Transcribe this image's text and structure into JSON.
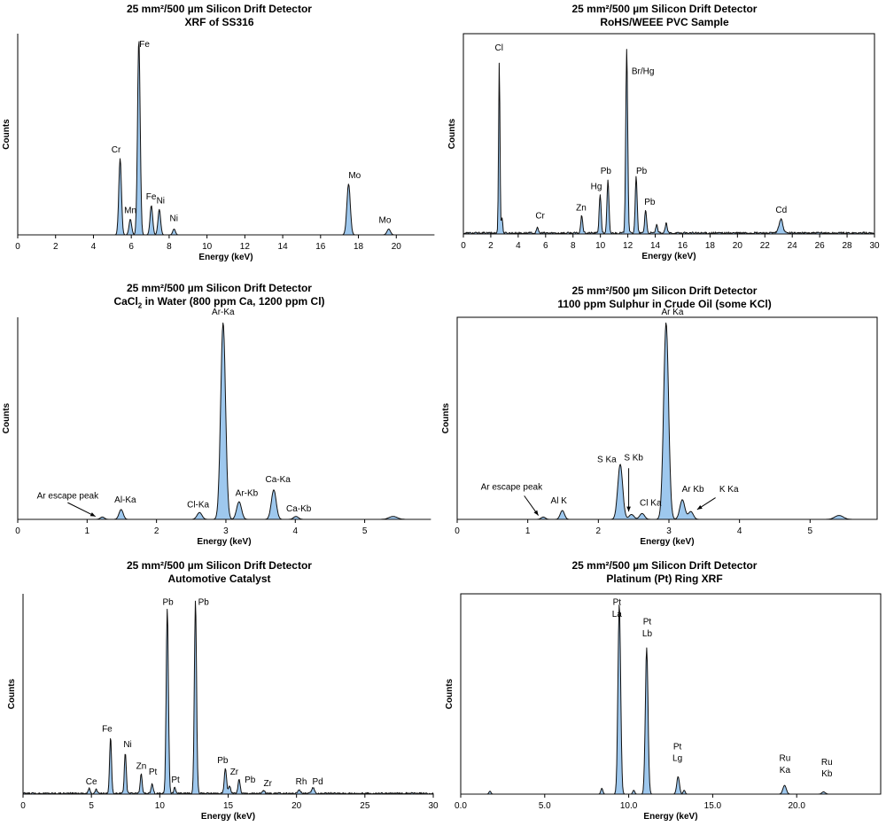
{
  "chart_data": [
    {
      "type": "area",
      "title": "25 mm²/500 µm Silicon Drift Detector",
      "subtitle": "XRF of SS316",
      "xlabel": "Energy (keV)",
      "ylabel": "Counts",
      "xlim": [
        0,
        22
      ],
      "xticks": [
        "0",
        "2",
        "4",
        "6",
        "8",
        "10",
        "12",
        "14",
        "16",
        "18",
        "20"
      ],
      "tick_step": 2,
      "frame": "left-bottom",
      "peaks": [
        {
          "x": 5.41,
          "h": 0.39,
          "w": 0.07
        },
        {
          "x": 5.95,
          "h": 0.08,
          "w": 0.07
        },
        {
          "x": 6.4,
          "h": 1.0,
          "w": 0.07
        },
        {
          "x": 7.06,
          "h": 0.15,
          "w": 0.07
        },
        {
          "x": 7.48,
          "h": 0.13,
          "w": 0.07
        },
        {
          "x": 8.26,
          "h": 0.03,
          "w": 0.07
        },
        {
          "x": 17.48,
          "h": 0.26,
          "w": 0.09
        },
        {
          "x": 19.6,
          "h": 0.03,
          "w": 0.09
        }
      ],
      "annotations": [
        {
          "text": "Cr",
          "x": 5.2,
          "h": 0.42
        },
        {
          "text": "Mn",
          "x": 5.95,
          "h": 0.11
        },
        {
          "text": "Fe",
          "x": 6.7,
          "h": 0.96
        },
        {
          "text": "Fe",
          "x": 7.05,
          "h": 0.18
        },
        {
          "text": "Ni",
          "x": 7.55,
          "h": 0.16
        },
        {
          "text": "Ni",
          "x": 8.25,
          "h": 0.07
        },
        {
          "text": "Mo",
          "x": 17.8,
          "h": 0.29
        },
        {
          "text": "Mo",
          "x": 19.4,
          "h": 0.06
        }
      ]
    },
    {
      "type": "area",
      "title": "25 mm²/500 µm Silicon Drift Detector",
      "subtitle": "RoHS/WEEE PVC Sample",
      "xlabel": "Energy (keV)",
      "ylabel": "Counts",
      "xlim": [
        0,
        30
      ],
      "xticks": [
        "0",
        "2",
        "4",
        "6",
        "8",
        "10",
        "12",
        "14",
        "16",
        "18",
        "20",
        "22",
        "24",
        "26",
        "28",
        "30"
      ],
      "tick_step": 2,
      "frame": "box",
      "noise": 0.01,
      "peaks": [
        {
          "x": 2.62,
          "h": 0.88,
          "w": 0.05
        },
        {
          "x": 2.82,
          "h": 0.08,
          "w": 0.05
        },
        {
          "x": 5.41,
          "h": 0.03,
          "w": 0.06
        },
        {
          "x": 8.64,
          "h": 0.09,
          "w": 0.07
        },
        {
          "x": 9.98,
          "h": 0.2,
          "w": 0.07
        },
        {
          "x": 10.55,
          "h": 0.27,
          "w": 0.07
        },
        {
          "x": 11.92,
          "h": 0.95,
          "w": 0.07
        },
        {
          "x": 12.61,
          "h": 0.29,
          "w": 0.07
        },
        {
          "x": 13.3,
          "h": 0.12,
          "w": 0.07
        },
        {
          "x": 14.1,
          "h": 0.04,
          "w": 0.07
        },
        {
          "x": 14.8,
          "h": 0.05,
          "w": 0.07
        },
        {
          "x": 23.17,
          "h": 0.07,
          "w": 0.14
        }
      ],
      "annotations": [
        {
          "text": "Cl",
          "x": 2.6,
          "h": 0.94
        },
        {
          "text": "Cr",
          "x": 5.6,
          "h": 0.08
        },
        {
          "text": "Zn",
          "x": 8.6,
          "h": 0.12
        },
        {
          "text": "Hg",
          "x": 9.7,
          "h": 0.23
        },
        {
          "text": "Pb",
          "x": 10.4,
          "h": 0.31
        },
        {
          "text": "Br/Hg",
          "x": 13.1,
          "h": 0.82
        },
        {
          "text": "Pb",
          "x": 13.0,
          "h": 0.31
        },
        {
          "text": "Pb",
          "x": 13.6,
          "h": 0.15
        },
        {
          "text": "Cd",
          "x": 23.2,
          "h": 0.11
        }
      ]
    },
    {
      "type": "area",
      "title": "25 mm²/500 µm Silicon Drift Detector",
      "subtitle_html": "CaCl<sub>2</sub> in Water (800 ppm Ca, 1200 ppm Cl)",
      "xlabel": "Energy (keV)",
      "ylabel": "Counts",
      "xlim": [
        0,
        5.95
      ],
      "xticks": [
        "0",
        "1",
        "2",
        "3",
        "4",
        "5"
      ],
      "tick_step": 1,
      "frame": "left-bottom",
      "peaks": [
        {
          "x": 1.22,
          "h": 0.012,
          "w": 0.03
        },
        {
          "x": 1.49,
          "h": 0.05,
          "w": 0.03
        },
        {
          "x": 2.62,
          "h": 0.035,
          "w": 0.035
        },
        {
          "x": 2.96,
          "h": 1.0,
          "w": 0.035
        },
        {
          "x": 3.19,
          "h": 0.09,
          "w": 0.035
        },
        {
          "x": 3.69,
          "h": 0.15,
          "w": 0.035
        },
        {
          "x": 4.01,
          "h": 0.015,
          "w": 0.035
        },
        {
          "x": 5.41,
          "h": 0.015,
          "w": 0.06
        }
      ],
      "annotations": [
        {
          "text": "Ar escape peak",
          "x": 0.72,
          "h": 0.105
        },
        {
          "text": "Al-Ka",
          "x": 1.55,
          "h": 0.085
        },
        {
          "text": "Cl-Ka",
          "x": 2.6,
          "h": 0.06
        },
        {
          "text": "Ar-Ka",
          "x": 2.96,
          "h": 1.04
        },
        {
          "text": "Ar-Kb",
          "x": 3.3,
          "h": 0.12
        },
        {
          "text": "Ca-Ka",
          "x": 3.75,
          "h": 0.19
        },
        {
          "text": "Ca-Kb",
          "x": 4.05,
          "h": 0.04
        }
      ],
      "arrows": [
        {
          "x1": 0.72,
          "h1": 0.085,
          "x2": 1.12,
          "h2": 0.015
        }
      ]
    },
    {
      "type": "area",
      "title": "25 mm²/500 µm Silicon Drift Detector",
      "subtitle": "1100 ppm Sulphur in Crude Oil (some KCl)",
      "xlabel": "Energy (keV)",
      "ylabel": "Counts",
      "xlim": [
        0,
        5.95
      ],
      "xticks": [
        "0",
        "1",
        "2",
        "3",
        "4",
        "5"
      ],
      "tick_step": 1,
      "frame": "box",
      "peaks": [
        {
          "x": 1.22,
          "h": 0.012,
          "w": 0.03
        },
        {
          "x": 1.49,
          "h": 0.045,
          "w": 0.03
        },
        {
          "x": 2.31,
          "h": 0.28,
          "w": 0.035
        },
        {
          "x": 2.47,
          "h": 0.025,
          "w": 0.035
        },
        {
          "x": 2.62,
          "h": 0.03,
          "w": 0.035
        },
        {
          "x": 2.96,
          "h": 1.0,
          "w": 0.035
        },
        {
          "x": 3.19,
          "h": 0.1,
          "w": 0.035
        },
        {
          "x": 3.31,
          "h": 0.04,
          "w": 0.035
        },
        {
          "x": 5.41,
          "h": 0.02,
          "w": 0.06
        }
      ],
      "annotations": [
        {
          "text": "Ar escape peak",
          "x": 0.77,
          "h": 0.15
        },
        {
          "text": "Al K",
          "x": 1.44,
          "h": 0.08
        },
        {
          "text": "S Ka",
          "x": 2.12,
          "h": 0.29
        },
        {
          "text": "S Kb",
          "x": 2.5,
          "h": 0.3
        },
        {
          "text": "Cl Ka",
          "x": 2.74,
          "h": 0.07
        },
        {
          "text": "Ar Ka",
          "x": 3.05,
          "h": 1.04
        },
        {
          "text": "Ar Kb",
          "x": 3.34,
          "h": 0.14
        },
        {
          "text": "K Ka",
          "x": 3.85,
          "h": 0.14
        }
      ],
      "arrows": [
        {
          "x1": 0.95,
          "h1": 0.12,
          "x2": 1.15,
          "h2": 0.02
        },
        {
          "x1": 2.43,
          "h1": 0.26,
          "x2": 2.43,
          "h2": 0.04
        },
        {
          "x1": 3.66,
          "h1": 0.11,
          "x2": 3.4,
          "h2": 0.05
        }
      ]
    },
    {
      "type": "area",
      "title": "25 mm²/500 µm Silicon Drift Detector",
      "subtitle": "Automotive Catalyst",
      "xlabel": "Energy (keV)",
      "ylabel": "Counts",
      "xlim": [
        0,
        30
      ],
      "xticks": [
        "0",
        "5",
        "10",
        "15",
        "20",
        "25",
        "30"
      ],
      "tick_step": 5,
      "frame": "left-bottom",
      "noise": 0.008,
      "peaks": [
        {
          "x": 4.84,
          "h": 0.025,
          "w": 0.07
        },
        {
          "x": 5.35,
          "h": 0.02,
          "w": 0.07
        },
        {
          "x": 6.4,
          "h": 0.29,
          "w": 0.07
        },
        {
          "x": 7.48,
          "h": 0.21,
          "w": 0.07
        },
        {
          "x": 8.64,
          "h": 0.1,
          "w": 0.07
        },
        {
          "x": 9.44,
          "h": 0.05,
          "w": 0.07
        },
        {
          "x": 10.55,
          "h": 0.95,
          "w": 0.08
        },
        {
          "x": 11.1,
          "h": 0.03,
          "w": 0.07
        },
        {
          "x": 12.61,
          "h": 0.99,
          "w": 0.08
        },
        {
          "x": 14.8,
          "h": 0.13,
          "w": 0.08
        },
        {
          "x": 15.1,
          "h": 0.04,
          "w": 0.08
        },
        {
          "x": 15.8,
          "h": 0.07,
          "w": 0.08
        },
        {
          "x": 17.6,
          "h": 0.015,
          "w": 0.08
        },
        {
          "x": 20.2,
          "h": 0.02,
          "w": 0.09
        },
        {
          "x": 21.2,
          "h": 0.03,
          "w": 0.09
        }
      ],
      "annotations": [
        {
          "text": "Ce",
          "x": 5.0,
          "h": 0.05
        },
        {
          "text": "Fe",
          "x": 6.15,
          "h": 0.32
        },
        {
          "text": "Ni",
          "x": 7.65,
          "h": 0.24
        },
        {
          "text": "Zn",
          "x": 8.65,
          "h": 0.13
        },
        {
          "text": "Pt",
          "x": 9.5,
          "h": 0.1
        },
        {
          "text": "Pb",
          "x": 10.6,
          "h": 0.97
        },
        {
          "text": "Pb",
          "x": 13.2,
          "h": 0.97
        },
        {
          "text": "Pt",
          "x": 11.15,
          "h": 0.06
        },
        {
          "text": "Pb",
          "x": 14.6,
          "h": 0.16
        },
        {
          "text": "Zr",
          "x": 15.45,
          "h": 0.1
        },
        {
          "text": "Pb",
          "x": 16.6,
          "h": 0.06
        },
        {
          "text": "Zr",
          "x": 17.9,
          "h": 0.04
        },
        {
          "text": "Rh",
          "x": 20.35,
          "h": 0.05
        },
        {
          "text": "Pd",
          "x": 21.55,
          "h": 0.05
        }
      ]
    },
    {
      "type": "area",
      "title": "25 mm²/500 µm Silicon Drift Detector",
      "subtitle": "Platinum (Pt) Ring XRF",
      "xlabel": "Energy (keV)",
      "ylabel": "Counts",
      "xlim": [
        0,
        25
      ],
      "xticks": [
        "0.0",
        "5.0",
        "10.0",
        "15.0",
        "20.0"
      ],
      "tick_step": 5,
      "frame": "box",
      "peaks": [
        {
          "x": 1.74,
          "h": 0.015,
          "w": 0.06
        },
        {
          "x": 8.4,
          "h": 0.03,
          "w": 0.06
        },
        {
          "x": 9.44,
          "h": 0.98,
          "w": 0.08
        },
        {
          "x": 10.3,
          "h": 0.02,
          "w": 0.06
        },
        {
          "x": 11.07,
          "h": 0.75,
          "w": 0.08
        },
        {
          "x": 12.94,
          "h": 0.09,
          "w": 0.08
        },
        {
          "x": 13.3,
          "h": 0.02,
          "w": 0.06
        },
        {
          "x": 19.28,
          "h": 0.045,
          "w": 0.1
        },
        {
          "x": 21.6,
          "h": 0.012,
          "w": 0.1
        }
      ],
      "annotations": [
        {
          "text": "Pt",
          "x": 9.3,
          "h": 0.97
        },
        {
          "text": "La",
          "x": 9.3,
          "h": 0.91
        },
        {
          "text": "Pt",
          "x": 11.1,
          "h": 0.87
        },
        {
          "text": "Lb",
          "x": 11.1,
          "h": 0.81
        },
        {
          "text": "Pt",
          "x": 12.9,
          "h": 0.23
        },
        {
          "text": "Lg",
          "x": 12.9,
          "h": 0.17
        },
        {
          "text": "Ru",
          "x": 19.3,
          "h": 0.17
        },
        {
          "text": "Ka",
          "x": 19.3,
          "h": 0.11
        },
        {
          "text": "Ru",
          "x": 21.8,
          "h": 0.15
        },
        {
          "text": "Kb",
          "x": 21.8,
          "h": 0.09
        }
      ]
    }
  ]
}
